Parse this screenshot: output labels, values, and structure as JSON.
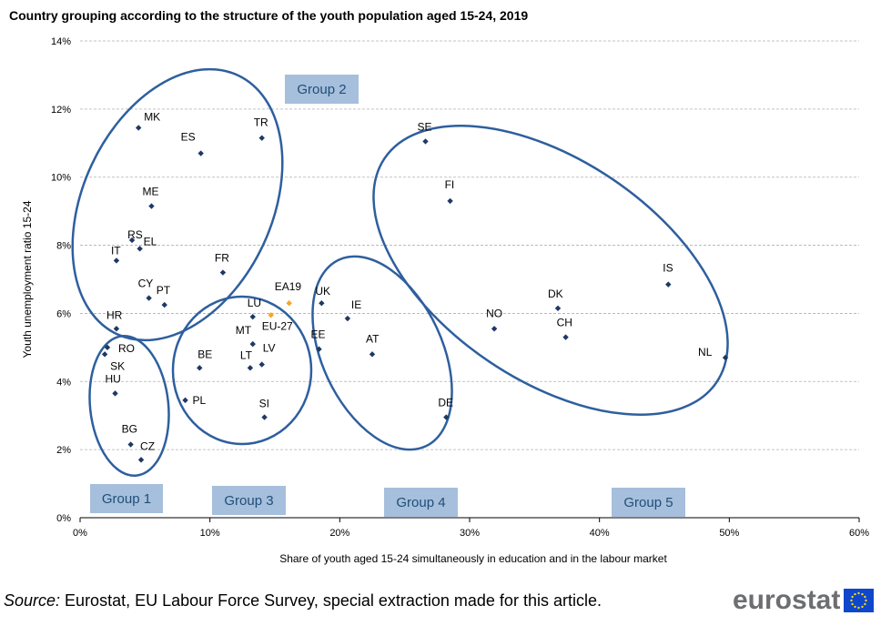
{
  "chart_data": {
    "type": "scatter",
    "title": "Country grouping according to the structure of the youth population aged 15-24, 2019",
    "xlabel": "Share of youth aged 15-24 simultaneously in education and in the labour market",
    "ylabel": "Youth unemployment ratio 15-24",
    "xlim": [
      0,
      60
    ],
    "ylim": [
      0,
      14
    ],
    "x_ticks": [
      "0%",
      "10%",
      "20%",
      "30%",
      "40%",
      "50%",
      "60%"
    ],
    "y_ticks": [
      "0%",
      "2%",
      "4%",
      "6%",
      "8%",
      "10%",
      "12%",
      "14%"
    ],
    "grid": "horizontal dashed",
    "points": [
      {
        "label": "MK",
        "x": 4.5,
        "y": 11.45,
        "color": "#1f3864"
      },
      {
        "label": "ES",
        "x": 9.3,
        "y": 10.7,
        "color": "#1f3864"
      },
      {
        "label": "TR",
        "x": 14.0,
        "y": 11.15,
        "color": "#1f3864"
      },
      {
        "label": "ME",
        "x": 5.5,
        "y": 9.15,
        "color": "#1f3864"
      },
      {
        "label": "RS",
        "x": 4.0,
        "y": 8.15,
        "color": "#1f3864"
      },
      {
        "label": "EL",
        "x": 4.6,
        "y": 7.9,
        "color": "#1f3864"
      },
      {
        "label": "IT",
        "x": 2.8,
        "y": 7.55,
        "color": "#1f3864"
      },
      {
        "label": "FR",
        "x": 11.0,
        "y": 7.2,
        "color": "#1f3864"
      },
      {
        "label": "CY",
        "x": 5.3,
        "y": 6.45,
        "color": "#1f3864"
      },
      {
        "label": "PT",
        "x": 6.5,
        "y": 6.25,
        "color": "#1f3864"
      },
      {
        "label": "HR",
        "x": 2.8,
        "y": 5.55,
        "color": "#1f3864"
      },
      {
        "label": "RO",
        "x": 2.1,
        "y": 5.0,
        "color": "#1f3864"
      },
      {
        "label": "SK",
        "x": 1.9,
        "y": 4.8,
        "color": "#1f3864"
      },
      {
        "label": "HU",
        "x": 2.7,
        "y": 3.65,
        "color": "#1f3864"
      },
      {
        "label": "PL",
        "x": 8.1,
        "y": 3.45,
        "color": "#1f3864"
      },
      {
        "label": "BG",
        "x": 3.9,
        "y": 2.15,
        "color": "#1f3864"
      },
      {
        "label": "CZ",
        "x": 4.7,
        "y": 1.7,
        "color": "#1f3864"
      },
      {
        "label": "LU",
        "x": 13.3,
        "y": 5.9,
        "color": "#1f3864"
      },
      {
        "label": "EU-27",
        "x": 14.7,
        "y": 5.95,
        "color": "#f5a623"
      },
      {
        "label": "EA19",
        "x": 16.1,
        "y": 6.3,
        "color": "#f5a623"
      },
      {
        "label": "MT",
        "x": 13.3,
        "y": 5.1,
        "color": "#1f3864"
      },
      {
        "label": "BE",
        "x": 9.2,
        "y": 4.4,
        "color": "#1f3864"
      },
      {
        "label": "LT",
        "x": 13.1,
        "y": 4.4,
        "color": "#1f3864"
      },
      {
        "label": "LV",
        "x": 14.0,
        "y": 4.5,
        "color": "#1f3864"
      },
      {
        "label": "SI",
        "x": 14.2,
        "y": 2.95,
        "color": "#1f3864"
      },
      {
        "label": "UK",
        "x": 18.6,
        "y": 6.3,
        "color": "#1f3864"
      },
      {
        "label": "IE",
        "x": 20.6,
        "y": 5.85,
        "color": "#1f3864"
      },
      {
        "label": "EE",
        "x": 18.4,
        "y": 4.95,
        "color": "#1f3864"
      },
      {
        "label": "AT",
        "x": 22.5,
        "y": 4.8,
        "color": "#1f3864"
      },
      {
        "label": "DE",
        "x": 28.2,
        "y": 2.95,
        "color": "#1f3864"
      },
      {
        "label": "SE",
        "x": 26.6,
        "y": 11.05,
        "color": "#1f3864"
      },
      {
        "label": "FI",
        "x": 28.5,
        "y": 9.3,
        "color": "#1f3864"
      },
      {
        "label": "NO",
        "x": 31.9,
        "y": 5.55,
        "color": "#1f3864"
      },
      {
        "label": "DK",
        "x": 36.8,
        "y": 6.15,
        "color": "#1f3864"
      },
      {
        "label": "CH",
        "x": 37.4,
        "y": 5.3,
        "color": "#1f3864"
      },
      {
        "label": "IS",
        "x": 45.3,
        "y": 6.85,
        "color": "#1f3864"
      },
      {
        "label": "NL",
        "x": 49.7,
        "y": 4.7,
        "color": "#1f3864"
      }
    ],
    "groups": [
      "Group 1",
      "Group 2",
      "Group 3",
      "Group 4",
      "Group 5"
    ],
    "group_outline_color": "#2e5f9e",
    "group_label_fill": "#a6bfdc",
    "group_label_text_color": "#1f4e79"
  },
  "footer": {
    "source_prefix": "Source:",
    "source_text": " Eurostat, EU Labour Force Survey, special extraction made for this article."
  },
  "logo": {
    "text": "eurostat",
    "icon": "eu-flag-icon"
  }
}
